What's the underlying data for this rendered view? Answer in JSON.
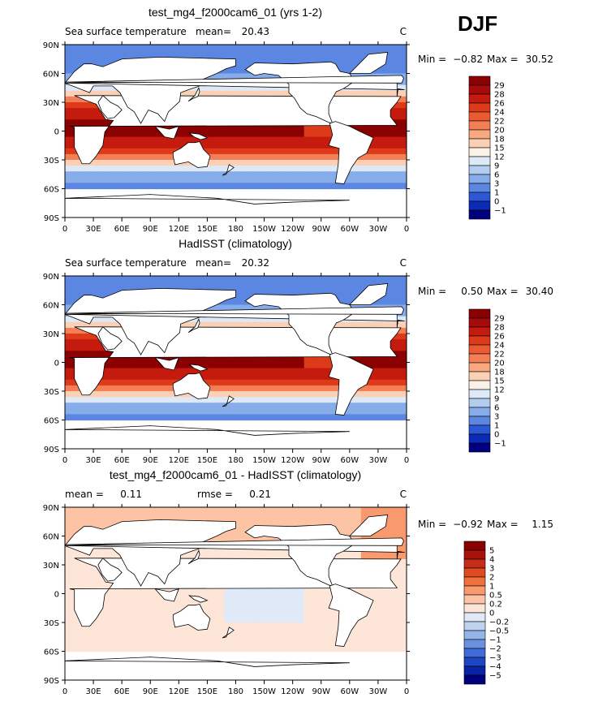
{
  "season": "DJF",
  "chart_data": [
    {
      "type": "heatmap",
      "title": "test_mg4_f2000cam6_01 (yrs 1-2)",
      "variable": "Sea surface temperature",
      "mean_label": "mean=",
      "mean": "20.43",
      "units": "C",
      "min_label": "Min =",
      "min": "−0.82",
      "max_label": "Max =",
      "max": "30.52",
      "xticks": [
        "0",
        "30E",
        "60E",
        "90E",
        "120E",
        "150E",
        "180",
        "150W",
        "120W",
        "90W",
        "60W",
        "30W",
        "0"
      ],
      "yticks": [
        "90N",
        "60N",
        "30N",
        "0",
        "30S",
        "60S",
        "90S"
      ],
      "xlim": [
        0,
        360
      ],
      "ylim": [
        -90,
        90
      ],
      "levels": [
        "29",
        "28",
        "26",
        "24",
        "22",
        "20",
        "18",
        "15",
        "12",
        "9",
        "6",
        "3",
        "1",
        "0",
        "−1"
      ],
      "colors": [
        "#8b0000",
        "#a60a0a",
        "#c51b0e",
        "#dd3a1a",
        "#eb5a31",
        "#f47f57",
        "#f9a880",
        "#fcd0b5",
        "#fbf1e6",
        "#dde9f7",
        "#b2cdef",
        "#86ade9",
        "#5b86e2",
        "#2c58d6",
        "#0b2bb7",
        "#00007f"
      ]
    },
    {
      "type": "heatmap",
      "title": "HadISST (climatology)",
      "variable": "Sea surface temperature",
      "mean_label": "mean=",
      "mean": "20.32",
      "units": "C",
      "min_label": "Min =",
      "min": "0.50",
      "max_label": "Max =",
      "max": "30.40",
      "xticks": [
        "0",
        "30E",
        "60E",
        "90E",
        "120E",
        "150E",
        "180",
        "150W",
        "120W",
        "90W",
        "60W",
        "30W",
        "0"
      ],
      "yticks": [
        "90N",
        "60N",
        "30N",
        "0",
        "30S",
        "60S",
        "90S"
      ],
      "xlim": [
        0,
        360
      ],
      "ylim": [
        -90,
        90
      ],
      "levels": [
        "29",
        "28",
        "26",
        "24",
        "22",
        "20",
        "18",
        "15",
        "12",
        "9",
        "6",
        "3",
        "1",
        "0",
        "−1"
      ],
      "colors": [
        "#8b0000",
        "#a60a0a",
        "#c51b0e",
        "#dd3a1a",
        "#eb5a31",
        "#f47f57",
        "#f9a880",
        "#fcd0b5",
        "#fbf1e6",
        "#dde9f7",
        "#b2cdef",
        "#86ade9",
        "#5b86e2",
        "#2c58d6",
        "#0b2bb7",
        "#00007f"
      ]
    },
    {
      "type": "heatmap",
      "title": "test_mg4_f2000cam6_01 - HadISST (climatology)",
      "mean_label": "mean =",
      "mean": "0.11",
      "rmse_label": "rmse =",
      "rmse": "0.21",
      "units": "C",
      "min_label": "Min =",
      "min": "−0.92",
      "max_label": "Max =",
      "max": "1.15",
      "xticks": [
        "0",
        "30E",
        "60E",
        "90E",
        "120E",
        "150E",
        "180",
        "150W",
        "120W",
        "90W",
        "60W",
        "30W",
        "0"
      ],
      "yticks": [
        "90N",
        "60N",
        "30N",
        "0",
        "30S",
        "60S",
        "90S"
      ],
      "xlim": [
        0,
        360
      ],
      "ylim": [
        -90,
        90
      ],
      "levels": [
        "5",
        "4",
        "3",
        "2",
        "1",
        "0.5",
        "0.2",
        "0",
        "−0.2",
        "−0.5",
        "−1",
        "−2",
        "−3",
        "−4",
        "−5"
      ],
      "colors": [
        "#8b0000",
        "#a8120d",
        "#c62c17",
        "#de4a22",
        "#f0703b",
        "#f89a6d",
        "#fcc4a5",
        "#fde6d8",
        "#dfe9f8",
        "#bfd3f0",
        "#93b5ea",
        "#6a92e1",
        "#3f6cd8",
        "#1d45c4",
        "#0a23a6",
        "#00007f"
      ]
    }
  ]
}
